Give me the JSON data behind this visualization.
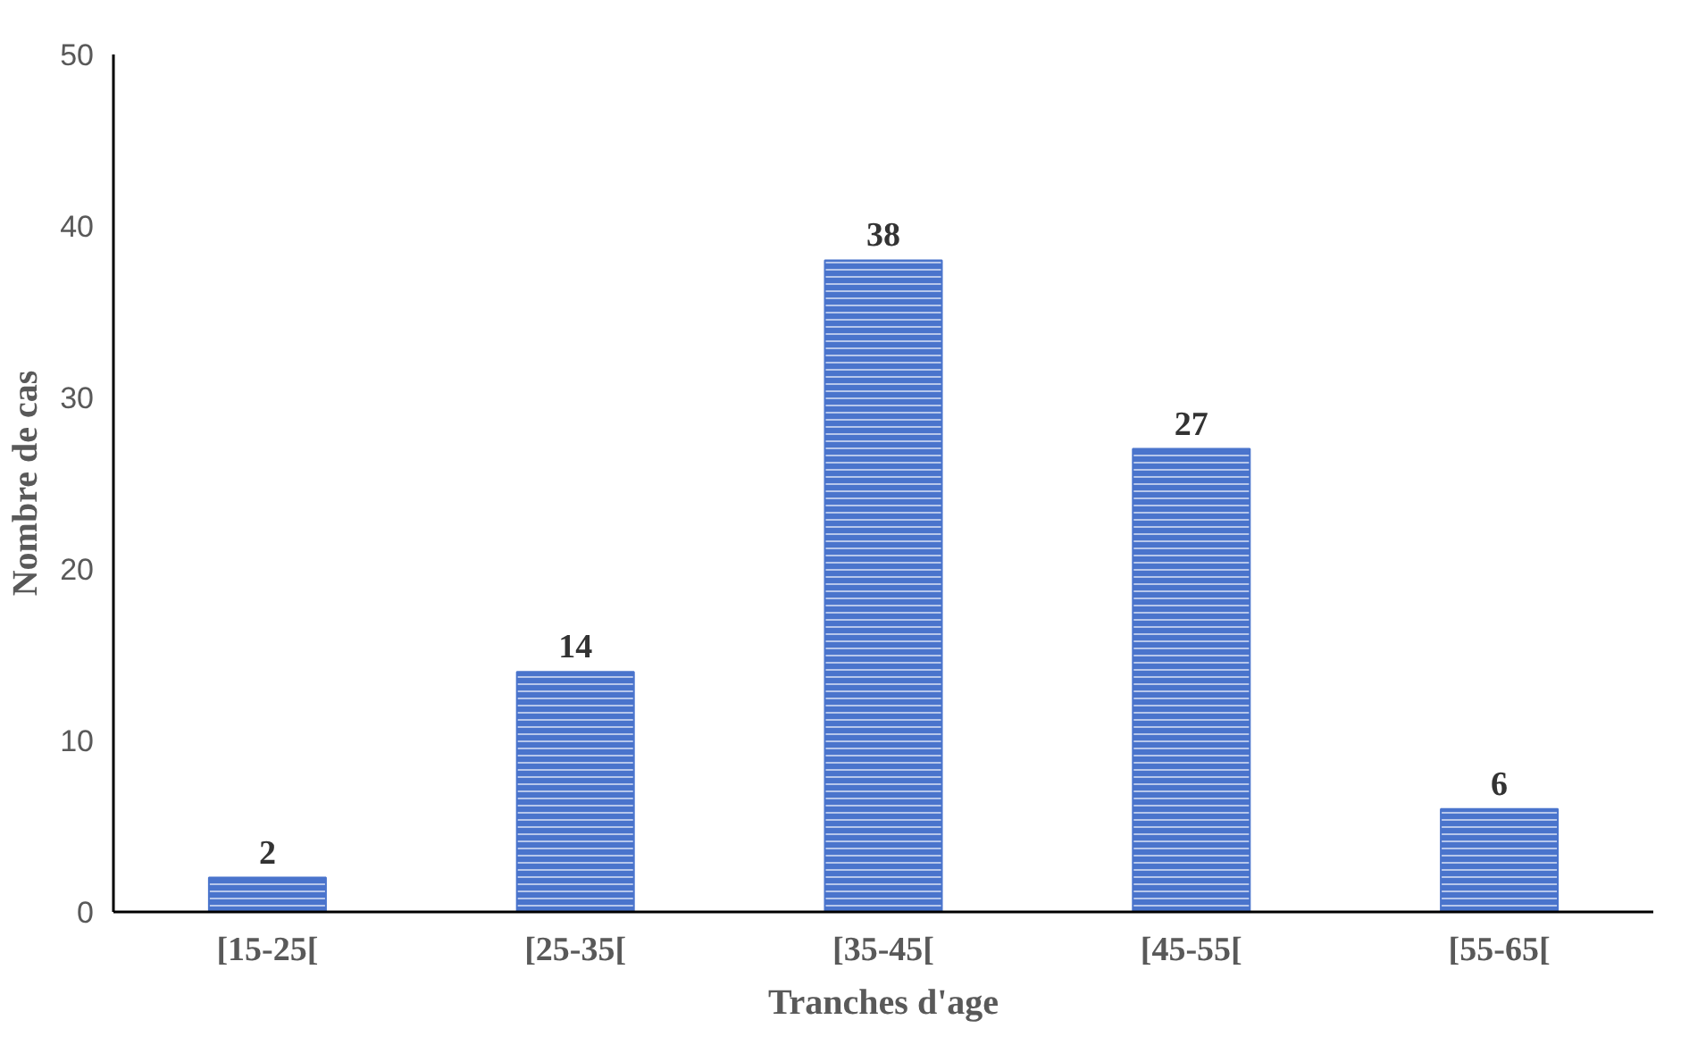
{
  "chart_data": {
    "type": "bar",
    "xlabel": "Tranches d'age",
    "ylabel": "Nombre de cas",
    "categories": [
      "[15-25[",
      "[25-35[",
      "[35-45[",
      "[45-55[",
      "[55-65["
    ],
    "values": [
      2,
      14,
      38,
      27,
      6
    ],
    "color": "#4a74cc",
    "ylim": [
      0,
      50
    ],
    "yticks": [
      0,
      10,
      20,
      30,
      40,
      50
    ],
    "grid": false,
    "data_labels": true
  }
}
